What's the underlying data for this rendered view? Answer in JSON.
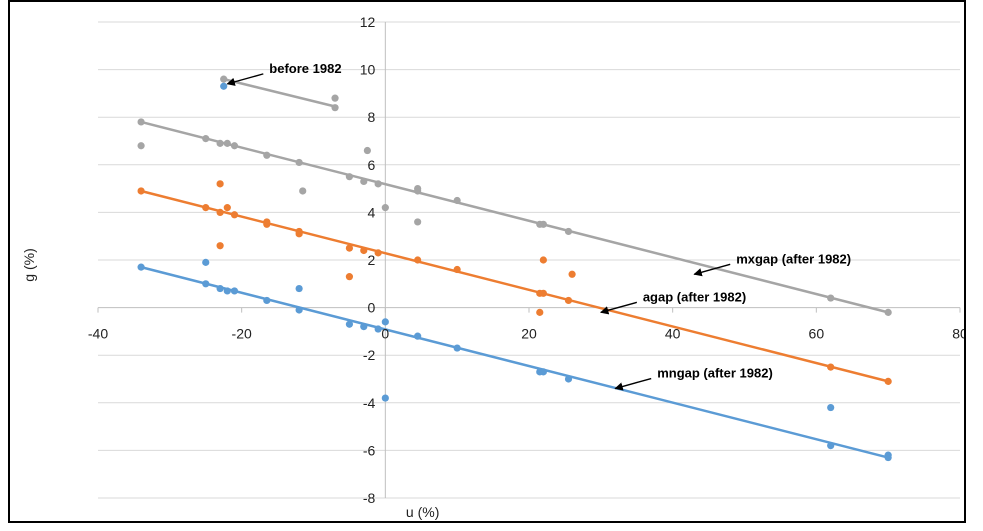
{
  "chart_data": {
    "type": "scatter",
    "title": "",
    "xlabel": "u (%)",
    "ylabel": "g (%)",
    "xlim": [
      -40,
      80
    ],
    "ylim": [
      -8,
      12
    ],
    "x_ticks": [
      -40,
      -20,
      0,
      20,
      40,
      60,
      80
    ],
    "y_ticks": [
      -8,
      -6,
      -4,
      -2,
      0,
      2,
      4,
      6,
      8,
      10,
      12
    ],
    "x_tick_labels": [
      "-40",
      "-20",
      "0",
      "20",
      "40",
      "60",
      "80"
    ],
    "y_tick_labels": [
      "-8",
      "-6",
      "-4",
      "-2",
      "0",
      "2",
      "4",
      "6",
      "8",
      "10",
      "12"
    ],
    "grid": "horizontal",
    "series": [
      {
        "color": "#ED7D31",
        "points": [
          [
            -34,
            4.9
          ],
          [
            -25,
            4.2
          ],
          [
            -23,
            4.0
          ],
          [
            -22,
            4.2
          ],
          [
            -21,
            3.9
          ],
          [
            -16.5,
            3.5
          ],
          [
            -16.5,
            3.6
          ],
          [
            -12,
            3.1
          ],
          [
            -12,
            3.2
          ],
          [
            -5,
            2.5
          ],
          [
            -3,
            2.4
          ],
          [
            -1,
            2.3
          ],
          [
            4.5,
            2.0
          ],
          [
            10,
            1.6
          ],
          [
            21.5,
            0.6
          ],
          [
            22,
            0.6
          ],
          [
            25.5,
            0.3
          ],
          [
            62,
            -2.5
          ],
          [
            70,
            -3.1
          ],
          [
            -23,
            5.2
          ],
          [
            -23,
            2.6
          ],
          [
            -5,
            1.3
          ],
          [
            22,
            2.0
          ],
          [
            26,
            1.4
          ],
          [
            21.5,
            -0.2
          ]
        ]
      },
      {
        "color": "#5B9BD5",
        "points": [
          [
            -34,
            1.7
          ],
          [
            -25,
            1.0
          ],
          [
            -23,
            0.8
          ],
          [
            -22,
            0.7
          ],
          [
            -21,
            0.7
          ],
          [
            -16.5,
            0.3
          ],
          [
            -12,
            -0.1
          ],
          [
            -5,
            -0.7
          ],
          [
            -3,
            -0.8
          ],
          [
            -1,
            -0.9
          ],
          [
            4.5,
            -1.2
          ],
          [
            10,
            -1.7
          ],
          [
            21.5,
            -2.7
          ],
          [
            22,
            -2.7
          ],
          [
            25.5,
            -3.0
          ],
          [
            62,
            -5.8
          ],
          [
            70,
            -6.3
          ],
          [
            70,
            -6.2
          ],
          [
            -22.5,
            9.3
          ],
          [
            -25,
            1.9
          ],
          [
            -12,
            0.8
          ],
          [
            0,
            -0.6
          ],
          [
            0,
            -3.8
          ],
          [
            62,
            -4.2
          ]
        ]
      },
      {
        "color": "#A5A5A5",
        "points": [
          [
            -34,
            7.8
          ],
          [
            -25,
            7.1
          ],
          [
            -23,
            6.9
          ],
          [
            -22,
            6.9
          ],
          [
            -21,
            6.8
          ],
          [
            -16.5,
            6.4
          ],
          [
            -12,
            6.1
          ],
          [
            -5,
            5.5
          ],
          [
            -3,
            5.3
          ],
          [
            -1,
            5.2
          ],
          [
            4.5,
            4.9
          ],
          [
            10,
            4.5
          ],
          [
            21.5,
            3.5
          ],
          [
            22,
            3.5
          ],
          [
            25.5,
            3.2
          ],
          [
            62,
            0.4
          ],
          [
            70,
            -0.2
          ],
          [
            -22.5,
            9.6
          ],
          [
            -7,
            8.4
          ],
          [
            -34,
            6.8
          ],
          [
            -11.5,
            4.9
          ],
          [
            -2.5,
            6.6
          ],
          [
            0,
            4.2
          ],
          [
            4.5,
            5.0
          ],
          [
            4.5,
            3.6
          ],
          [
            -7,
            8.8
          ]
        ]
      }
    ],
    "trendlines": [
      {
        "label": "agap (after 1982)",
        "color": "#ED7D31",
        "from": [
          -34,
          4.9
        ],
        "to": [
          70,
          -3.1
        ]
      },
      {
        "label": "mngap (after 1982)",
        "color": "#5B9BD5",
        "from": [
          -34,
          1.7
        ],
        "to": [
          70,
          -6.3
        ]
      },
      {
        "label": "mxgap (after 1982)",
        "color": "#A5A5A5",
        "from": [
          -34,
          7.8
        ],
        "to": [
          70,
          -0.2
        ]
      },
      {
        "label": "before 1982",
        "color": "#A5A5A5",
        "from": [
          -22.5,
          9.6
        ],
        "to": [
          -7,
          8.45
        ]
      }
    ],
    "annotations": [
      {
        "text": "before 1982",
        "tip": [
          -22,
          9.4
        ]
      },
      {
        "text": "mxgap (after 1982)",
        "tip": [
          43,
          1.4
        ]
      },
      {
        "text": "agap (after 1982)",
        "tip": [
          30,
          -0.2
        ]
      },
      {
        "text": "mngap (after 1982)",
        "tip": [
          32,
          -3.4
        ]
      }
    ]
  }
}
